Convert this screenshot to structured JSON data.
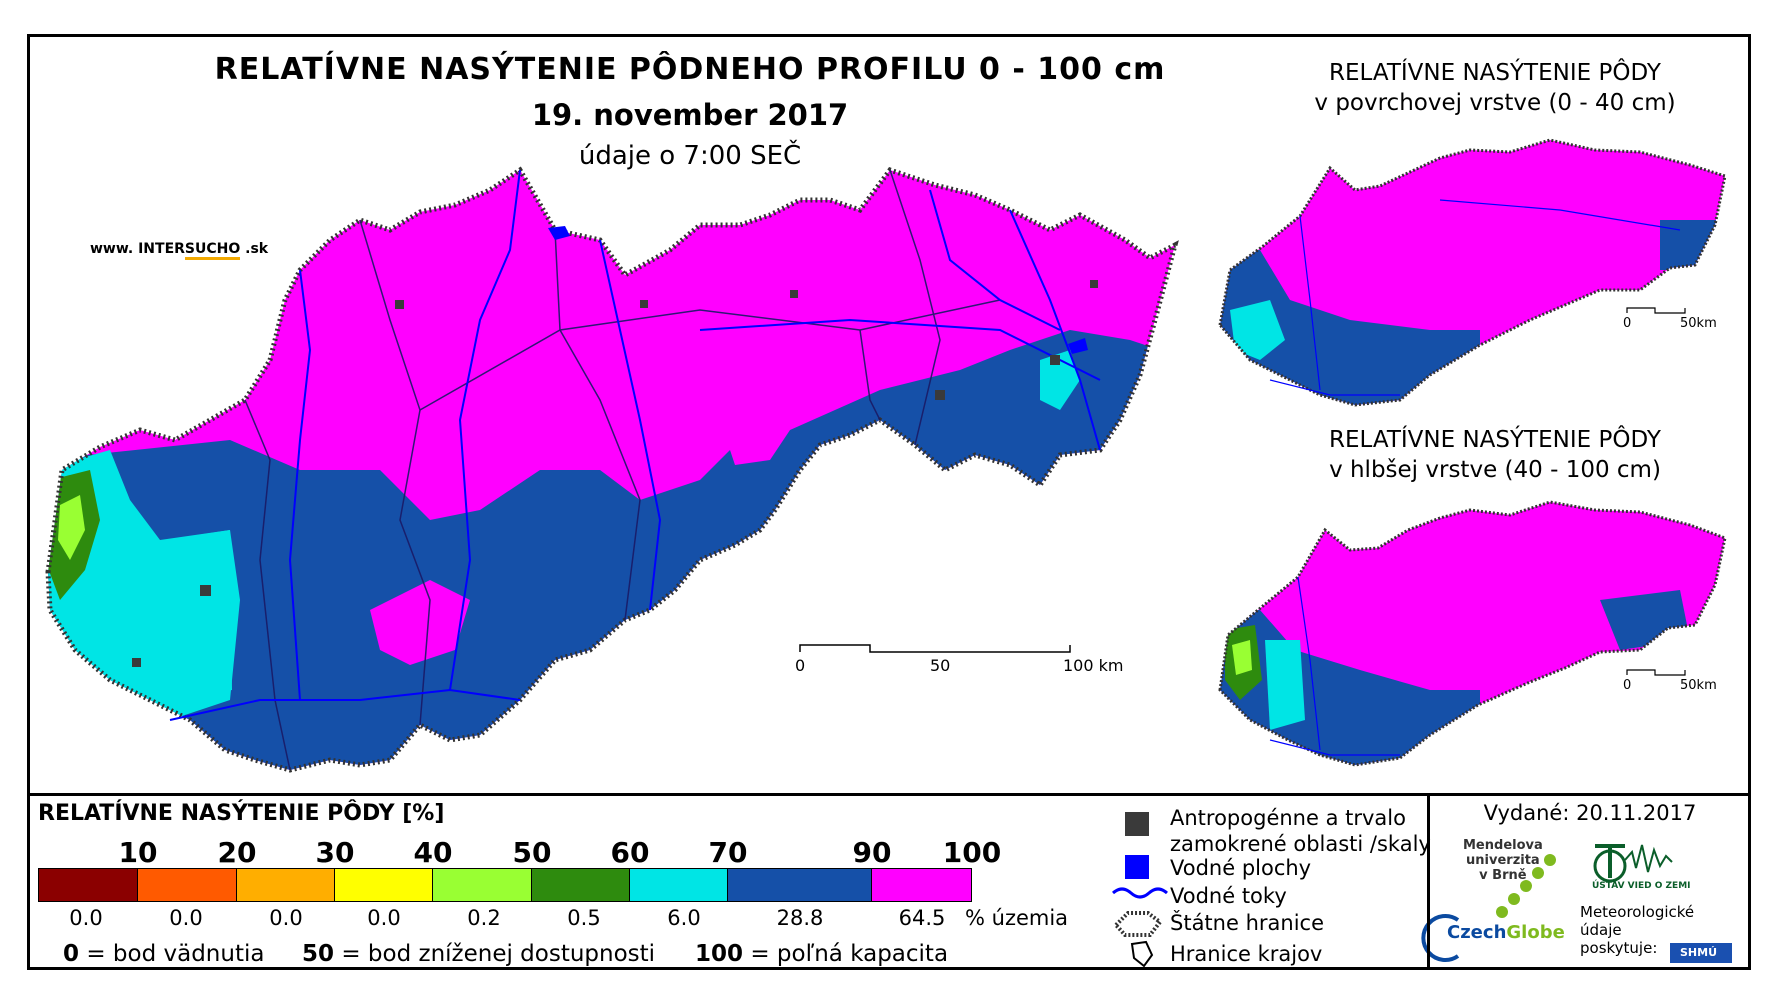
{
  "titles": {
    "main": "RELATÍVNE NASÝTENIE PÔDNEHO PROFILU 0 - 100 cm",
    "date": "19. november 2017",
    "time": "údaje o 7:00 SEČ",
    "inset_top_line1": "RELATÍVNE NASÝTENIE PÔDY",
    "inset_top_line2": "v povrchovej vrstve (0 - 40 cm)",
    "inset_bottom_line1": "RELATÍVNE NASÝTENIE PÔDY",
    "inset_bottom_line2": "v hlbšej vrstve (40 - 100 cm)"
  },
  "website": {
    "prefix": "www. INTER",
    "highlight": "SUCHO",
    "suffix": " .sk"
  },
  "scalebars": {
    "main": {
      "labels": [
        "0",
        "50",
        "100 km"
      ]
    },
    "inset_top": {
      "labels": [
        "0",
        "50km"
      ]
    },
    "inset_bottom": {
      "labels": [
        "0",
        "50km"
      ]
    }
  },
  "legend": {
    "title": "RELATÍVNE NASÝTENIE PÔDY [%]",
    "ticks": [
      "10",
      "20",
      "30",
      "40",
      "50",
      "60",
      "70",
      "90",
      "100"
    ],
    "classes": [
      {
        "color": "#8b0000",
        "share": "0.0"
      },
      {
        "color": "#ff5a00",
        "share": "0.0"
      },
      {
        "color": "#ffae00",
        "share": "0.0"
      },
      {
        "color": "#ffff00",
        "share": "0.0"
      },
      {
        "color": "#99ff33",
        "share": "0.2"
      },
      {
        "color": "#2e8b0e",
        "share": "0.5"
      },
      {
        "color": "#00e5e5",
        "share": "6.0"
      },
      {
        "color": "#1550a8",
        "share": "28.8"
      },
      {
        "color": "#ff00ff",
        "share": "64.5"
      }
    ],
    "unit": "% územia",
    "notes": [
      {
        "value": "0",
        "text": " = bod vädnutia"
      },
      {
        "value": "50",
        "text": " = bod zníženej dostupnosti"
      },
      {
        "value": "100",
        "text": " = poľná kapacita"
      }
    ]
  },
  "symbols": {
    "anthropogenic_line1": "Antropogénne a trvalo",
    "anthropogenic_line2": "zamokrené oblasti /skaly",
    "water_bodies": "Vodné plochy",
    "rivers": "Vodné toky",
    "state_border": "Štátne hranice",
    "regional_border": "Hranice krajov",
    "colors": {
      "anthropogenic": "#3a3a3a",
      "water": "#0000ff",
      "river": "#0000ff"
    }
  },
  "issued": "Vydané: 20.11.2017",
  "institutions": {
    "mendel_line1": "Mendelova",
    "mendel_line2": "univerzita",
    "mendel_line3": "v Brně",
    "czechglobe_a": "Czech",
    "czechglobe_b": "Globe",
    "uvgz": "ÚSTAV VIED O ZEMI",
    "meteo_line1": "Meteorologické",
    "meteo_line2": "údaje",
    "meteo_line3": "poskytuje:",
    "shmu": "SHMÚ"
  },
  "colors": {
    "magenta": "#ff00ff",
    "darkblue": "#1550a8",
    "cyan": "#00e5e5",
    "green": "#2e8b0e",
    "lime": "#99ff33"
  }
}
